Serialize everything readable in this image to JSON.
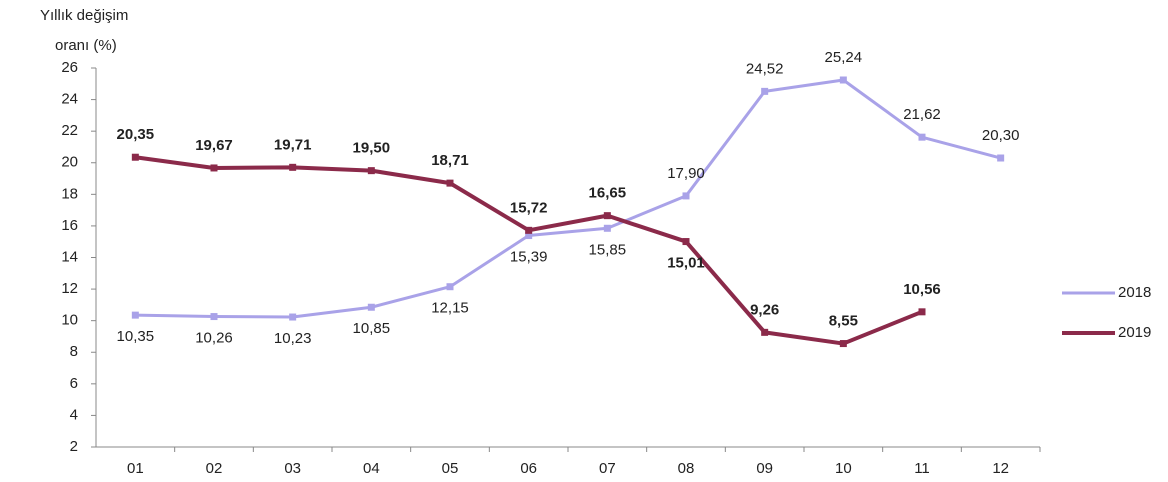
{
  "chart_data": {
    "type": "line",
    "y_label": [
      "Yıllık  değişim",
      "oranı (%)"
    ],
    "categories": [
      "01",
      "02",
      "03",
      "04",
      "05",
      "06",
      "07",
      "08",
      "09",
      "10",
      "11",
      "12"
    ],
    "series": [
      {
        "name": "2018",
        "color": "#a9a2e8",
        "values": [
          10.35,
          10.26,
          10.23,
          10.85,
          12.15,
          15.39,
          15.85,
          17.9,
          24.52,
          25.24,
          21.62,
          20.3
        ],
        "value_labels": [
          "10,35",
          "10,26",
          "10,23",
          "10,85",
          "12,15",
          "15,39",
          "15,85",
          "17,90",
          "24,52",
          "25,24",
          "21,62",
          "20,30"
        ]
      },
      {
        "name": "2019",
        "color": "#8b2a4a",
        "values": [
          20.35,
          19.67,
          19.71,
          19.5,
          18.71,
          15.72,
          16.65,
          15.01,
          9.26,
          8.55,
          10.56,
          null
        ],
        "value_labels": [
          "20,35",
          "19,67",
          "19,71",
          "19,50",
          "18,71",
          "15,72",
          "16,65",
          "15,01",
          "9,26",
          "8,55",
          "10,56",
          null
        ]
      }
    ],
    "ylim": [
      2,
      26
    ],
    "yticks": [
      2,
      4,
      6,
      8,
      10,
      12,
      14,
      16,
      18,
      20,
      22,
      24,
      26
    ],
    "grid": false,
    "legend": "right"
  }
}
